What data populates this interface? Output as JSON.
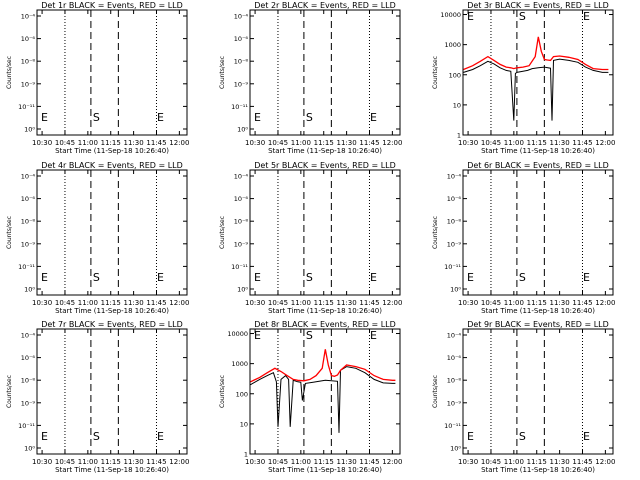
{
  "chart_data": [
    {
      "type": "line",
      "title": "Det 1r BLACK = Events, RED = LLD",
      "ylabel": "Counts/sec",
      "xlabel": "Start Time (11-Sep-18 10:26:40)",
      "xticks": [
        "10:30",
        "10:45",
        "11:00",
        "11:15",
        "11:30",
        "11:45",
        "12:00"
      ],
      "yticks": [
        "10⁻⁴",
        "10⁻⁶",
        "10⁻⁸",
        "10⁻⁹",
        "10⁻¹¹",
        "10⁰"
      ],
      "yscale": "log",
      "markers": [
        {
          "label": "E",
          "time": "10:28"
        },
        {
          "label": "S",
          "time": "11:02"
        },
        {
          "label": "E",
          "time": "11:44"
        }
      ],
      "series": []
    },
    {
      "type": "line",
      "title": "Det 2r BLACK = Events, RED = LLD",
      "ylabel": "Counts/sec",
      "xlabel": "Start Time (11-Sep-18 10:26:40)",
      "xticks": [
        "10:30",
        "10:45",
        "11:00",
        "11:15",
        "11:30",
        "11:45",
        "12:00"
      ],
      "yticks": [
        "10⁻⁴",
        "10⁻⁶",
        "10⁻⁸",
        "10⁻⁹",
        "10⁻¹¹",
        "10⁰"
      ],
      "yscale": "log",
      "markers": [
        {
          "label": "E",
          "time": "10:28"
        },
        {
          "label": "S",
          "time": "11:02"
        },
        {
          "label": "E",
          "time": "11:44"
        }
      ],
      "series": []
    },
    {
      "type": "line",
      "title": "Det 3r BLACK = Events, RED = LLD",
      "ylabel": "Counts/sec",
      "xlabel": "Start Time (11-Sep-18 10:26:40)",
      "xticks": [
        "10:30",
        "10:45",
        "11:00",
        "11:15",
        "11:30",
        "11:45",
        "12:00"
      ],
      "yticks": [
        "10000",
        "1000",
        "100",
        "10",
        "1"
      ],
      "yscale": "log",
      "markers": [
        {
          "label": "E",
          "time": "10:28"
        },
        {
          "label": "S",
          "time": "11:02"
        },
        {
          "label": "E",
          "time": "11:44"
        }
      ],
      "series": [
        {
          "name": "Events",
          "color": "#000000",
          "x": [
            "10:27",
            "10:33",
            "10:38",
            "10:43",
            "10:47",
            "10:51",
            "10:55",
            "10:58",
            "11:00",
            "11:01",
            "11:02",
            "11:06",
            "11:09",
            "11:12",
            "11:16",
            "11:20",
            "11:24",
            "11:25",
            "11:26",
            "11:30",
            "11:36",
            "11:42",
            "11:47",
            "11:52",
            "11:58",
            "12:02"
          ],
          "y": [
            120,
            150,
            200,
            280,
            230,
            170,
            140,
            130,
            3,
            110,
            120,
            130,
            140,
            160,
            170,
            180,
            165,
            3,
            300,
            330,
            300,
            260,
            180,
            140,
            120,
            120
          ]
        },
        {
          "name": "LLD",
          "color": "#ff0000",
          "x": [
            "10:27",
            "10:33",
            "10:38",
            "10:43",
            "10:47",
            "10:51",
            "10:55",
            "10:58",
            "11:00",
            "11:02",
            "11:06",
            "11:10",
            "11:14",
            "11:16",
            "11:18",
            "11:20",
            "11:22",
            "11:24",
            "11:26",
            "11:30",
            "11:36",
            "11:42",
            "11:47",
            "11:52",
            "11:58",
            "12:02"
          ],
          "y": [
            150,
            200,
            280,
            400,
            300,
            220,
            180,
            170,
            160,
            170,
            180,
            200,
            400,
            1800,
            600,
            320,
            310,
            300,
            400,
            420,
            380,
            320,
            220,
            160,
            150,
            150
          ]
        }
      ]
    },
    {
      "type": "line",
      "title": "Det 4r BLACK = Events, RED = LLD",
      "ylabel": "Counts/sec",
      "xlabel": "Start Time (11-Sep-18 10:26:40)",
      "xticks": [
        "10:30",
        "10:45",
        "11:00",
        "11:15",
        "11:30",
        "11:45",
        "12:00"
      ],
      "yticks": [
        "10⁻⁴",
        "10⁻⁶",
        "10⁻⁸",
        "10⁻⁹",
        "10⁻¹¹",
        "10⁰"
      ],
      "yscale": "log",
      "markers": [
        {
          "label": "E",
          "time": "10:28"
        },
        {
          "label": "S",
          "time": "11:02"
        },
        {
          "label": "E",
          "time": "11:44"
        }
      ],
      "series": []
    },
    {
      "type": "line",
      "title": "Det 5r BLACK = Events, RED = LLD",
      "ylabel": "Counts/sec",
      "xlabel": "Start Time (11-Sep-18 10:26:40)",
      "xticks": [
        "10:30",
        "10:45",
        "11:00",
        "11:15",
        "11:30",
        "11:45",
        "12:00"
      ],
      "yticks": [
        "10⁻⁴",
        "10⁻⁶",
        "10⁻⁸",
        "10⁻⁹",
        "10⁻¹¹",
        "10⁰"
      ],
      "yscale": "log",
      "markers": [
        {
          "label": "E",
          "time": "10:28"
        },
        {
          "label": "S",
          "time": "11:02"
        },
        {
          "label": "E",
          "time": "11:44"
        }
      ],
      "series": []
    },
    {
      "type": "line",
      "title": "Det 6r BLACK = Events, RED = LLD",
      "ylabel": "Counts/sec",
      "xlabel": "Start Time (11-Sep-18 10:26:40)",
      "xticks": [
        "10:30",
        "10:45",
        "11:00",
        "11:15",
        "11:30",
        "11:45",
        "12:00"
      ],
      "yticks": [
        "10⁻⁴",
        "10⁻⁶",
        "10⁻⁸",
        "10⁻⁹",
        "10⁻¹¹",
        "10⁰"
      ],
      "yscale": "log",
      "markers": [
        {
          "label": "E",
          "time": "10:28"
        },
        {
          "label": "S",
          "time": "11:02"
        },
        {
          "label": "E",
          "time": "11:44"
        }
      ],
      "series": []
    },
    {
      "type": "line",
      "title": "Det 7r BLACK = Events, RED = LLD",
      "ylabel": "Counts/sec",
      "xlabel": "Start Time (11-Sep-18 10:26:40)",
      "xticks": [
        "10:30",
        "10:45",
        "11:00",
        "11:15",
        "11:30",
        "11:45",
        "12:00"
      ],
      "yticks": [
        "10⁻⁴",
        "10⁻⁶",
        "10⁻⁸",
        "10⁻⁹",
        "10⁻¹¹",
        "10⁰"
      ],
      "yscale": "log",
      "markers": [
        {
          "label": "E",
          "time": "10:28"
        },
        {
          "label": "S",
          "time": "11:02"
        },
        {
          "label": "E",
          "time": "11:44"
        }
      ],
      "series": []
    },
    {
      "type": "line",
      "title": "Det 8r BLACK = Events, RED = LLD",
      "ylabel": "Counts/sec",
      "xlabel": "Start Time (11-Sep-18 10:26:40)",
      "xticks": [
        "10:30",
        "10:45",
        "11:00",
        "11:15",
        "11:30",
        "11:45",
        "12:00"
      ],
      "yticks": [
        "10000",
        "1000",
        "100",
        "10",
        "1"
      ],
      "yscale": "log",
      "markers": [
        {
          "label": "E",
          "time": "10:28"
        },
        {
          "label": "S",
          "time": "11:02"
        },
        {
          "label": "E",
          "time": "11:44"
        }
      ],
      "series": [
        {
          "name": "Events",
          "color": "#000000",
          "x": [
            "10:27",
            "10:33",
            "10:38",
            "10:42",
            "10:44",
            "10:45",
            "10:47",
            "10:50",
            "10:52",
            "10:53",
            "10:55",
            "10:58",
            "11:00",
            "11:01",
            "11:03",
            "11:08",
            "11:12",
            "11:16",
            "11:20",
            "11:24",
            "11:25",
            "11:26",
            "11:30",
            "11:36",
            "11:42",
            "11:48",
            "11:54",
            "12:00",
            "12:02"
          ],
          "y": [
            200,
            300,
            400,
            500,
            250,
            8,
            300,
            400,
            300,
            8,
            280,
            250,
            240,
            60,
            220,
            240,
            260,
            280,
            270,
            260,
            5,
            600,
            800,
            700,
            500,
            300,
            230,
            220,
            220
          ]
        },
        {
          "name": "LLD",
          "color": "#ff0000",
          "x": [
            "10:27",
            "10:33",
            "10:38",
            "10:43",
            "10:47",
            "10:51",
            "10:55",
            "10:58",
            "11:02",
            "11:06",
            "11:10",
            "11:14",
            "11:16",
            "11:18",
            "11:20",
            "11:22",
            "11:24",
            "11:26",
            "11:30",
            "11:36",
            "11:42",
            "11:48",
            "11:54",
            "12:00",
            "12:02"
          ],
          "y": [
            250,
            350,
            500,
            700,
            550,
            400,
            300,
            280,
            270,
            300,
            400,
            700,
            3000,
            900,
            400,
            380,
            420,
            600,
            900,
            800,
            650,
            400,
            300,
            280,
            280
          ]
        }
      ]
    },
    {
      "type": "line",
      "title": "Det 9r BLACK = Events, RED = LLD",
      "ylabel": "Counts/sec",
      "xlabel": "Start Time (11-Sep-18 10:26:40)",
      "xticks": [
        "10:30",
        "10:45",
        "11:00",
        "11:15",
        "11:30",
        "11:45",
        "12:00"
      ],
      "yticks": [
        "10⁻⁴",
        "10⁻⁶",
        "10⁻⁸",
        "10⁻⁹",
        "10⁻¹¹",
        "10⁰"
      ],
      "yscale": "log",
      "markers": [
        {
          "label": "E",
          "time": "10:28"
        },
        {
          "label": "S",
          "time": "11:02"
        },
        {
          "label": "E",
          "time": "11:44"
        }
      ],
      "series": []
    }
  ]
}
